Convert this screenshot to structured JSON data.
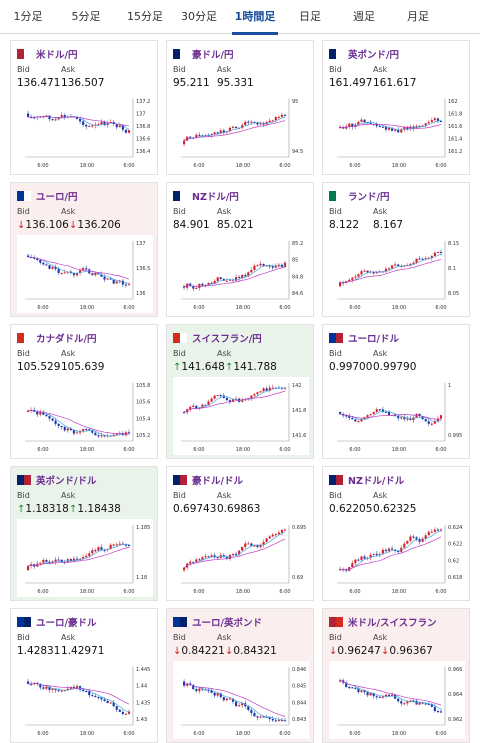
{
  "tabs": [
    {
      "label": "1分足"
    },
    {
      "label": "5分足"
    },
    {
      "label": "15分足"
    },
    {
      "label": "30分足"
    },
    {
      "label": "1時間足",
      "active": true
    },
    {
      "label": "日足"
    },
    {
      "label": "週足"
    },
    {
      "label": "月足"
    }
  ],
  "labels": {
    "bid": "Bid",
    "ask": "Ask"
  },
  "colors": {
    "bull": "#d6202a",
    "bear": "#1c3aa8",
    "ma_fast": "#4aa8e0",
    "ma_slow": "#c03fc7",
    "pair_text": "#6a2c91",
    "up_bg": "#eaf3ea",
    "down_bg": "#fbeeee"
  },
  "cards": [
    {
      "pair": "米ドル/円",
      "flag": [
        "#b22234",
        "#ffffff"
      ],
      "bid": "136.471",
      "ask": "136.507",
      "dir": "none",
      "trend": "down",
      "yticks": [
        "137.2",
        "137",
        "136.8",
        "136.6",
        "136.4"
      ],
      "xticks": [
        "6:00",
        "18:00",
        "6:00"
      ]
    },
    {
      "pair": "豪ドル/円",
      "flag": [
        "#012169",
        "#ffffff"
      ],
      "bid": "95.211",
      "ask": "95.331",
      "dir": "none",
      "trend": "up",
      "yticks": [
        "95",
        "94.5"
      ],
      "xticks": [
        "6:00",
        "18:00",
        "6:00"
      ]
    },
    {
      "pair": "英ポンド/円",
      "flag": [
        "#012169",
        "#ffffff"
      ],
      "bid": "161.497",
      "ask": "161.617",
      "dir": "none",
      "trend": "flat",
      "yticks": [
        "162",
        "161.8",
        "161.6",
        "161.4",
        "161.2"
      ],
      "xticks": [
        "6:00",
        "18:00",
        "6:00"
      ]
    },
    {
      "pair": "ユーロ/円",
      "flag": [
        "#003399",
        "#ffffff"
      ],
      "bid": "136.106",
      "ask": "136.206",
      "dir": "down",
      "trend": "down",
      "yticks": [
        "137",
        "136.5",
        "136"
      ],
      "xticks": [
        "6:00",
        "18:00",
        "6:00"
      ]
    },
    {
      "pair": "NZドル/円",
      "flag": [
        "#012169",
        "#ffffff"
      ],
      "bid": "84.901",
      "ask": "85.021",
      "dir": "none",
      "trend": "up",
      "yticks": [
        "85.2",
        "85",
        "84.8",
        "84.6"
      ],
      "xticks": [
        "6:00",
        "18:00",
        "6:00"
      ]
    },
    {
      "pair": "ランド/円",
      "flag": [
        "#007a4d",
        "#ffffff"
      ],
      "bid": "8.122",
      "ask": "8.167",
      "dir": "none",
      "trend": "up",
      "yticks": [
        "8.15",
        "8.1",
        "8.05"
      ],
      "xticks": [
        "6:00",
        "18:00",
        "6:00"
      ]
    },
    {
      "pair": "カナダドル/円",
      "flag": [
        "#d52b1e",
        "#ffffff"
      ],
      "bid": "105.529",
      "ask": "105.639",
      "dir": "none",
      "trend": "flat",
      "yticks": [
        "105.8",
        "105.6",
        "105.4",
        "105.2"
      ],
      "xticks": [
        "6:00",
        "18:00",
        "6:00"
      ]
    },
    {
      "pair": "スイスフラン/円",
      "flag": [
        "#d52b1e",
        "#ffffff"
      ],
      "bid": "141.648",
      "ask": "141.788",
      "dir": "up",
      "trend": "flat",
      "yticks": [
        "142",
        "141.8",
        "141.6"
      ],
      "xticks": [
        "6:00",
        "18:00",
        "6:00"
      ]
    },
    {
      "pair": "ユーロ/ドル",
      "flag": [
        "#003399",
        "#b22234"
      ],
      "bid": "0.99700",
      "ask": "0.99790",
      "dir": "none",
      "trend": "flat",
      "yticks": [
        "1",
        "0.995"
      ],
      "xticks": [
        "6:00",
        "18:00",
        "6:00"
      ]
    },
    {
      "pair": "英ポンド/ドル",
      "flag": [
        "#012169",
        "#b22234"
      ],
      "bid": "1.18318",
      "ask": "1.18438",
      "dir": "up",
      "trend": "up",
      "yticks": [
        "1.185",
        "1.18"
      ],
      "xticks": [
        "6:00",
        "18:00",
        "6:00"
      ]
    },
    {
      "pair": "豪ドル/ドル",
      "flag": [
        "#012169",
        "#b22234"
      ],
      "bid": "0.69743",
      "ask": "0.69863",
      "dir": "none",
      "trend": "up",
      "yticks": [
        "0.695",
        "0.69"
      ],
      "xticks": [
        "6:00",
        "18:00",
        "6:00"
      ]
    },
    {
      "pair": "NZドル/ドル",
      "flag": [
        "#012169",
        "#b22234"
      ],
      "bid": "0.62205",
      "ask": "0.62325",
      "dir": "none",
      "trend": "up",
      "yticks": [
        "0.624",
        "0.622",
        "0.62",
        "0.618"
      ],
      "xticks": [
        "6:00",
        "18:00",
        "6:00"
      ]
    },
    {
      "pair": "ユーロ/豪ドル",
      "flag": [
        "#003399",
        "#012169"
      ],
      "bid": "1.42831",
      "ask": "1.42971",
      "dir": "none",
      "trend": "down",
      "yticks": [
        "1.445",
        "1.44",
        "1.435",
        "1.43"
      ],
      "xticks": [
        "6:00",
        "18:00",
        "6:00"
      ]
    },
    {
      "pair": "ユーロ/英ポンド",
      "flag": [
        "#003399",
        "#012169"
      ],
      "bid": "0.84221",
      "ask": "0.84321",
      "dir": "down",
      "trend": "down",
      "yticks": [
        "0.846",
        "0.845",
        "0.844",
        "0.843"
      ],
      "xticks": [
        "6:00",
        "18:00",
        "6:00"
      ]
    },
    {
      "pair": "米ドル/スイスフラン",
      "flag": [
        "#b22234",
        "#d52b1e"
      ],
      "bid": "0.96247",
      "ask": "0.96367",
      "dir": "down",
      "trend": "down",
      "yticks": [
        "0.966",
        "0.964",
        "0.962"
      ],
      "xticks": [
        "6:00",
        "18:00",
        "6:00"
      ]
    }
  ]
}
